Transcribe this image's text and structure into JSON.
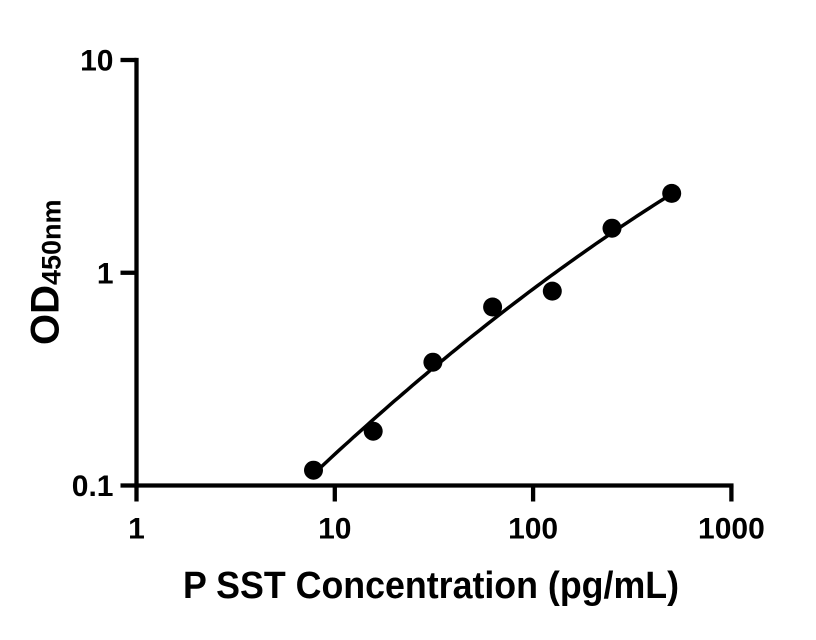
{
  "figure": {
    "background_color": "#ffffff",
    "foreground_color": "#000000"
  },
  "chart_data": {
    "type": "scatter",
    "title": "",
    "xlabel": "P SST Concentration (pg/mL)",
    "ylabel_main": "OD",
    "ylabel_sub": "450nm",
    "x_scale": "log10",
    "y_scale": "log10",
    "xlim": [
      1,
      1000
    ],
    "ylim": [
      0.1,
      10
    ],
    "x_ticks": [
      {
        "value": 1,
        "label": "1"
      },
      {
        "value": 10,
        "label": "10"
      },
      {
        "value": 100,
        "label": "100"
      },
      {
        "value": 1000,
        "label": "1000"
      }
    ],
    "y_ticks": [
      {
        "value": 10,
        "label": "10"
      },
      {
        "value": 1,
        "label": "1"
      },
      {
        "value": 0.1,
        "label": "0.1"
      }
    ],
    "grid": false,
    "legend": "none",
    "marker_color": "#000000",
    "line_color": "#000000",
    "series": [
      {
        "marker": "filled-circle",
        "trendline": "quadratic-fit-log-log",
        "x": [
          7.8125,
          15.625,
          31.25,
          62.5,
          125,
          250,
          500
        ],
        "y": [
          0.118,
          0.18,
          0.38,
          0.69,
          0.82,
          1.62,
          2.36
        ]
      }
    ]
  }
}
